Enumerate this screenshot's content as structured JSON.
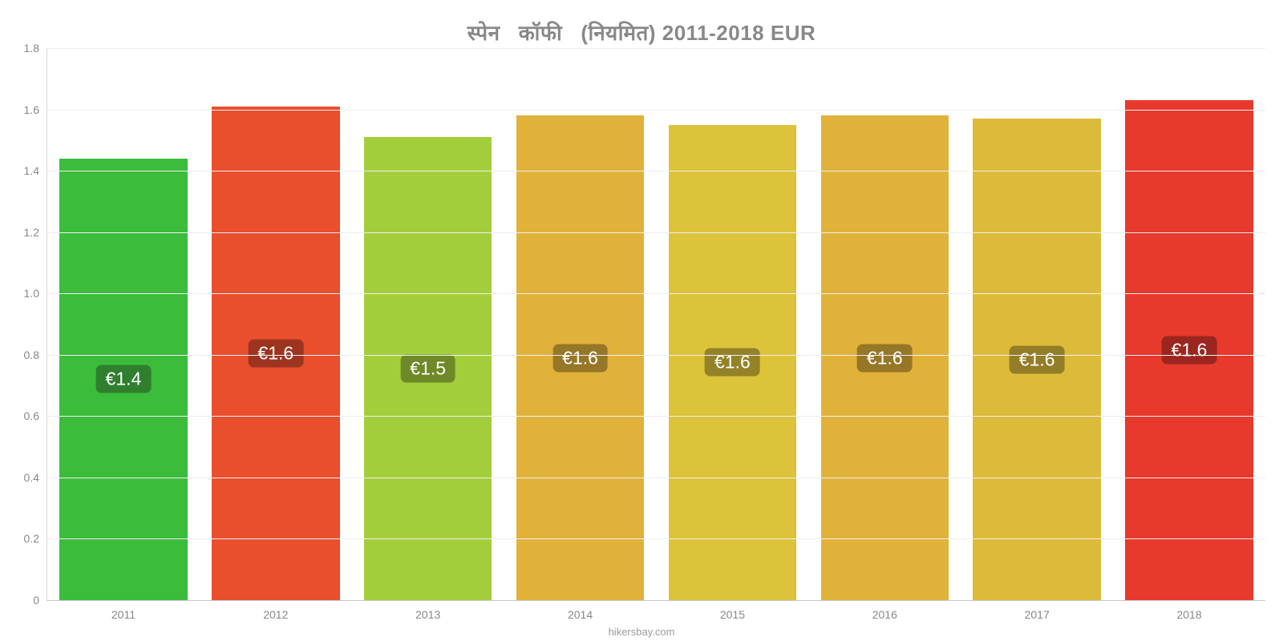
{
  "chart": {
    "type": "bar",
    "title": "स्पेन   कॉफी   (नियमित) 2011-2018 EUR",
    "title_color": "#888888",
    "title_fontsize": 26,
    "background_color": "#ffffff",
    "grid_color": "#eeeeee",
    "axis_color": "#d9d9d9",
    "tick_color": "#888888",
    "tick_fontsize": 14,
    "ylim": [
      0,
      1.8
    ],
    "yticks": [
      0.2,
      0.4,
      0.6,
      0.8,
      1.0,
      1.2,
      1.4,
      1.6,
      1.8
    ],
    "ytick_labels": [
      "0.2",
      "0.4",
      "0.6",
      "0.8",
      "1.0",
      "1.2",
      "1.4",
      "1.6",
      "1.8"
    ],
    "yzero_label": "0",
    "categories": [
      "2011",
      "2012",
      "2013",
      "2014",
      "2015",
      "2016",
      "2017",
      "2018"
    ],
    "values": [
      1.44,
      1.61,
      1.51,
      1.58,
      1.55,
      1.58,
      1.57,
      1.63
    ],
    "value_labels": [
      "€1.4",
      "€1.6",
      "€1.5",
      "€1.6",
      "€1.6",
      "€1.6",
      "€1.6",
      "€1.6"
    ],
    "bar_colors": [
      "#3bbd3b",
      "#e94e2d",
      "#a3ce3c",
      "#e0b23a",
      "#dcc33a",
      "#e0b23a",
      "#ddbb3a",
      "#e8392d"
    ],
    "label_bg_colors": [
      "#2f7f2f",
      "#9c3420",
      "#6e8928",
      "#967727",
      "#938227",
      "#967727",
      "#947d27",
      "#9b261f"
    ],
    "label_text_color": "#ffffff",
    "label_fontsize": 23,
    "bar_width": 0.84,
    "attribution": "hikersbay.com",
    "attribution_color": "#9a9a9a"
  }
}
